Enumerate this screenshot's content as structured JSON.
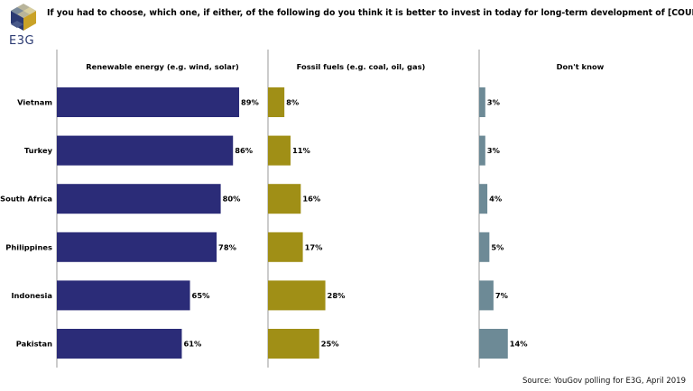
{
  "header": {
    "logo_text": "E3G",
    "title": "If you had to choose, which one, if either, of the following do you think it is better to invest in today for long-term development of [COUNTRY]?"
  },
  "footer": {
    "source": "Source: YouGov polling for E3G, April 2019"
  },
  "chart_data": {
    "type": "bar",
    "orientation": "horizontal",
    "layout": "small-multiples",
    "categories": [
      "Vietnam",
      "Turkey",
      "South Africa",
      "Philippines",
      "Indonesia",
      "Pakistan"
    ],
    "series": [
      {
        "name": "Renewable energy (e.g. wind, solar)",
        "values": [
          89,
          86,
          80,
          78,
          65,
          61
        ],
        "color": "#2b2c78"
      },
      {
        "name": "Fossil fuels (e.g. coal, oil, gas)",
        "values": [
          8,
          11,
          16,
          17,
          28,
          25
        ],
        "color": "#a08f16"
      },
      {
        "name": "Don't know",
        "values": [
          3,
          3,
          4,
          5,
          7,
          14
        ],
        "color": "#6d8a96"
      }
    ],
    "value_suffix": "%",
    "xlim": [
      0,
      100
    ],
    "grid": false
  }
}
